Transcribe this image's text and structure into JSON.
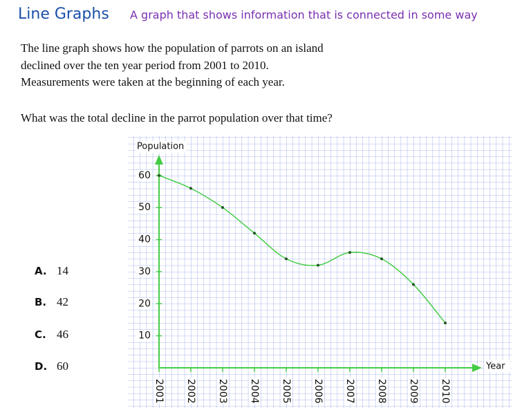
{
  "header": {
    "title": "Line Graphs",
    "subtitle": "A graph that shows information that is connected in some way"
  },
  "intro": [
    "The line graph shows how the population of parrots on an island",
    "declined over the ten year period from 2001 to 2010.",
    "Measurements were taken at the beginning of each year."
  ],
  "question": "What was the total decline in the parrot population over that time?",
  "options": [
    {
      "letter": "A.",
      "value": 14
    },
    {
      "letter": "B.",
      "value": 42
    },
    {
      "letter": "C.",
      "value": 46
    },
    {
      "letter": "D.",
      "value": 60
    }
  ],
  "chart_data": {
    "type": "line",
    "ylabel": "Population",
    "xlabel": "Year",
    "categories": [
      "2001",
      "2002",
      "2003",
      "2004",
      "2005",
      "2006",
      "2007",
      "2008",
      "2009",
      "2010"
    ],
    "values": [
      60,
      56,
      50,
      42,
      34,
      32,
      36,
      34,
      26,
      14
    ],
    "color": "#44cc44",
    "ylim": [
      0,
      66
    ],
    "yticks": [
      10,
      20,
      30,
      40,
      50,
      60
    ]
  }
}
